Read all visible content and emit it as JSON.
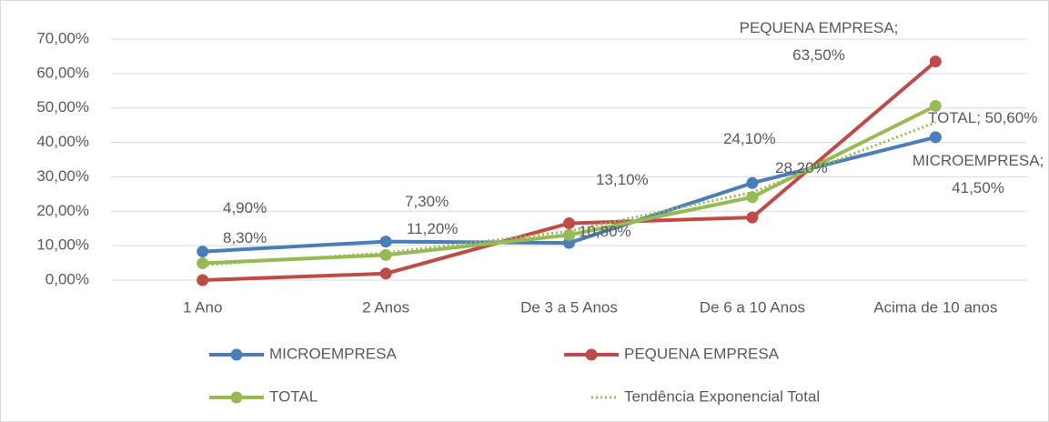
{
  "chart_data": {
    "type": "line",
    "categories": [
      "1 Ano",
      "2 Anos",
      "De 3 a 5 Anos",
      "De 6 a 10 Anos",
      "Acima de 10 anos"
    ],
    "series": [
      {
        "name": "MICROEMPRESA",
        "color": "#4a7ebb",
        "values": [
          8.3,
          11.2,
          10.8,
          28.2,
          41.5
        ],
        "value_labels": [
          "8,30%",
          "11,20%",
          "10,80%",
          "28,20%",
          "MICROEMPRESA; 41,50%"
        ]
      },
      {
        "name": "PEQUENA EMPRESA",
        "color": "#be4b48",
        "values": [
          0,
          1.9,
          16.5,
          18.2,
          63.5
        ],
        "value_labels": [
          null,
          null,
          null,
          null,
          "PEQUENA EMPRESA; 63,50%"
        ]
      },
      {
        "name": "TOTAL",
        "color": "#98b954",
        "values": [
          4.9,
          7.3,
          13.1,
          24.1,
          50.6
        ],
        "value_labels": [
          "4,90%",
          "7,30%",
          "13,10%",
          "24,10%",
          "TOTAL; 50,60%"
        ]
      },
      {
        "name": "Tendência Exponencial Total",
        "color": "#98b954",
        "style": "dotted",
        "values": [
          4.4,
          7.9,
          14.2,
          25.5,
          45.8
        ]
      }
    ],
    "ylim": [
      0,
      70
    ],
    "yticks": [
      {
        "value": 0,
        "label": "0,00%"
      },
      {
        "value": 10,
        "label": "10,00%"
      },
      {
        "value": 20,
        "label": "20,00%"
      },
      {
        "value": 30,
        "label": "30,00%"
      },
      {
        "value": 40,
        "label": "40,00%"
      },
      {
        "value": 50,
        "label": "50,00%"
      },
      {
        "value": 60,
        "label": "60,00%"
      },
      {
        "value": 70,
        "label": "70,00%"
      }
    ],
    "grid": true
  }
}
